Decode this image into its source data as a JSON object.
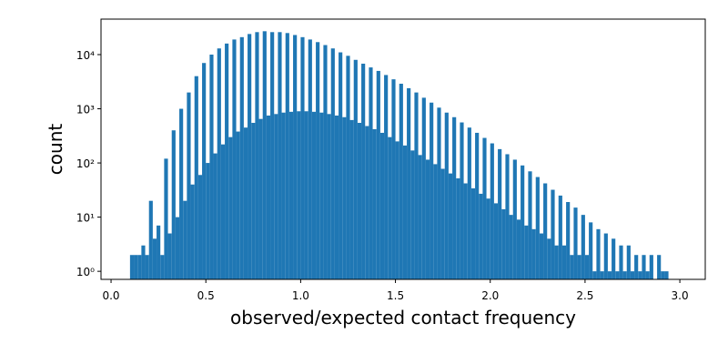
{
  "chart_data": {
    "type": "histogram",
    "xlabel": "observed/expected contact frequency",
    "ylabel": "count",
    "color": "#1f77b4",
    "ylog": true,
    "xlim": [
      -0.053,
      3.134
    ],
    "ylim": [
      0.71,
      45200
    ],
    "xticks": [
      {
        "value": 0,
        "label": "0.0"
      },
      0.5,
      {
        "value": 1,
        "label": "1.0"
      },
      1.5,
      {
        "value": 2,
        "label": "2.0"
      },
      2.5,
      {
        "value": 3,
        "label": "3.0"
      }
    ],
    "yticks": [
      {
        "value": 1,
        "label": "10⁰"
      },
      {
        "value": 10,
        "label": "10¹"
      },
      {
        "value": 100,
        "label": "10²"
      },
      {
        "value": 1000,
        "label": "10³"
      },
      {
        "value": 10000,
        "label": "10⁴"
      }
    ],
    "bins": [
      0.08,
      0.1,
      0.12,
      0.14,
      0.16,
      0.18,
      0.2,
      0.22,
      0.24,
      0.26,
      0.28,
      0.3,
      0.32,
      0.34,
      0.36,
      0.38,
      0.4,
      0.42,
      0.44,
      0.46,
      0.48,
      0.5,
      0.52,
      0.54,
      0.56,
      0.58,
      0.6,
      0.62,
      0.64,
      0.66,
      0.68,
      0.7,
      0.72,
      0.74,
      0.76,
      0.78,
      0.8,
      0.82,
      0.84,
      0.86,
      0.88,
      0.9,
      0.92,
      0.94,
      0.96,
      0.98,
      1,
      1.02,
      1.04,
      1.06,
      1.08,
      1.1,
      1.12,
      1.14,
      1.16,
      1.18,
      1.2,
      1.22,
      1.24,
      1.26,
      1.28,
      1.3,
      1.32,
      1.34,
      1.36,
      1.38,
      1.4,
      1.42,
      1.44,
      1.46,
      1.48,
      1.5,
      1.52,
      1.54,
      1.56,
      1.58,
      1.6,
      1.62,
      1.64,
      1.66,
      1.68,
      1.7,
      1.72,
      1.74,
      1.76,
      1.78,
      1.8,
      1.82,
      1.84,
      1.86,
      1.88,
      1.9,
      1.92,
      1.94,
      1.96,
      1.98,
      2,
      2.02,
      2.04,
      2.06,
      2.08,
      2.1,
      2.12,
      2.14,
      2.16,
      2.18,
      2.2,
      2.22,
      2.24,
      2.26,
      2.28,
      2.3,
      2.32,
      2.34,
      2.36,
      2.38,
      2.4,
      2.42,
      2.44,
      2.46,
      2.48,
      2.5,
      2.52,
      2.54,
      2.56,
      2.58,
      2.6,
      2.62,
      2.64,
      2.66,
      2.68,
      2.7,
      2.72,
      2.74,
      2.76,
      2.78,
      2.8,
      2.82,
      2.84,
      2.86,
      2.88,
      2.9,
      2.92,
      2.94,
      2.96
    ],
    "values": [
      0,
      2,
      2,
      2,
      3,
      2,
      20,
      4,
      7,
      2,
      120,
      5,
      400,
      10,
      1000,
      20,
      2000,
      40,
      4000,
      60,
      7000,
      100,
      10000,
      150,
      13000,
      220,
      16000,
      300,
      19000,
      380,
      21000,
      450,
      24000,
      550,
      26000,
      650,
      27000,
      750,
      26000,
      800,
      26000,
      850,
      25000,
      880,
      23000,
      900,
      21000,
      900,
      19000,
      880,
      17000,
      850,
      15000,
      800,
      13000,
      750,
      11000,
      700,
      9500,
      620,
      8000,
      550,
      6800,
      480,
      5800,
      420,
      5000,
      360,
      4200,
      300,
      3500,
      250,
      2900,
      210,
      2400,
      170,
      2000,
      140,
      1600,
      115,
      1300,
      95,
      1050,
      78,
      850,
      64,
      700,
      52,
      560,
      42,
      450,
      34,
      360,
      27,
      290,
      22,
      230,
      18,
      180,
      14,
      145,
      11,
      115,
      9,
      90,
      7,
      70,
      6,
      55,
      5,
      42,
      4,
      32,
      3,
      25,
      3,
      19,
      2,
      15,
      2,
      11,
      2,
      8,
      1,
      6,
      1,
      5,
      1,
      4,
      1,
      3,
      1,
      3,
      1,
      2,
      1,
      2,
      1,
      2,
      0,
      2,
      1,
      1,
      0
    ]
  }
}
